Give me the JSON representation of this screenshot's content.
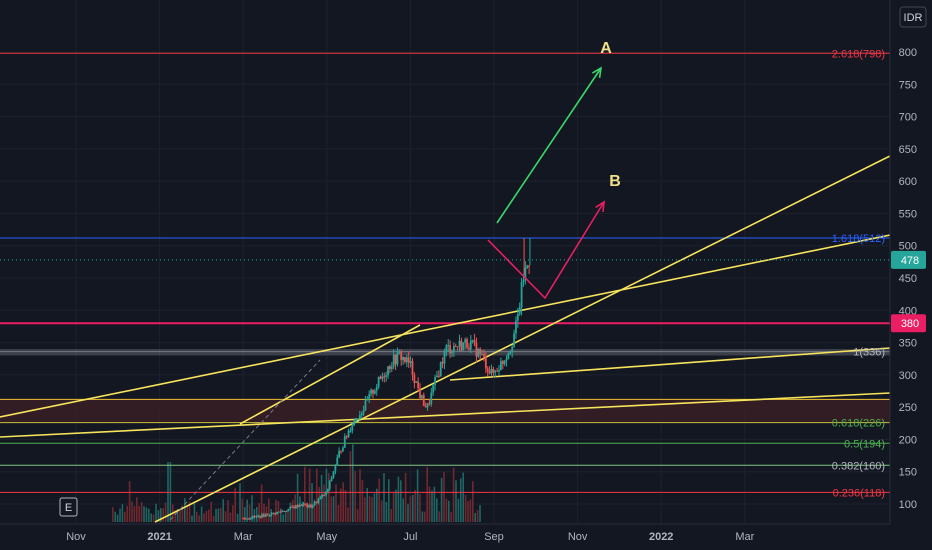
{
  "chart_data": {
    "type": "candlestick",
    "currency": "IDR",
    "y_ticks": [
      100,
      150,
      200,
      250,
      300,
      350,
      400,
      450,
      500,
      550,
      600,
      650,
      700,
      750,
      800
    ],
    "ylim": [
      78,
      858
    ],
    "x_ticks": [
      {
        "label": "Nov",
        "bold": false
      },
      {
        "label": "2021",
        "bold": true
      },
      {
        "label": "Mar",
        "bold": false
      },
      {
        "label": "May",
        "bold": false
      },
      {
        "label": "Jul",
        "bold": false
      },
      {
        "label": "Sep",
        "bold": false
      },
      {
        "label": "Nov",
        "bold": false
      },
      {
        "label": "2022",
        "bold": true
      },
      {
        "label": "Mar",
        "bold": false
      }
    ],
    "candles": {
      "anchors": [
        {
          "m": 4.0,
          "v": 78
        },
        {
          "m": 4.3,
          "v": 80
        },
        {
          "m": 4.7,
          "v": 85
        },
        {
          "m": 5.0,
          "v": 90
        },
        {
          "m": 5.4,
          "v": 100
        },
        {
          "m": 5.6,
          "v": 95
        },
        {
          "m": 6.0,
          "v": 118
        },
        {
          "m": 6.3,
          "v": 180
        },
        {
          "m": 6.6,
          "v": 225
        },
        {
          "m": 6.9,
          "v": 250
        },
        {
          "m": 7.1,
          "v": 275
        },
        {
          "m": 7.35,
          "v": 300
        },
        {
          "m": 7.55,
          "v": 320
        },
        {
          "m": 7.75,
          "v": 330
        },
        {
          "m": 8.0,
          "v": 315
        },
        {
          "m": 8.25,
          "v": 265
        },
        {
          "m": 8.4,
          "v": 248
        },
        {
          "m": 8.6,
          "v": 290
        },
        {
          "m": 8.85,
          "v": 340
        },
        {
          "m": 9.1,
          "v": 345
        },
        {
          "m": 9.4,
          "v": 350
        },
        {
          "m": 9.7,
          "v": 330
        },
        {
          "m": 9.95,
          "v": 300
        },
        {
          "m": 10.2,
          "v": 320
        },
        {
          "m": 10.4,
          "v": 345
        },
        {
          "m": 10.55,
          "v": 380
        },
        {
          "m": 10.7,
          "v": 450
        },
        {
          "m": 10.85,
          "v": 480
        }
      ],
      "last_value": 478
    },
    "fib_levels": [
      {
        "label": "2.618(798)",
        "value": 798,
        "color": "#f23645"
      },
      {
        "label": "1.618(512)",
        "value": 512,
        "color": "#2962ff"
      },
      {
        "label": "1(336)",
        "value": 336,
        "color": "#787b86"
      },
      {
        "label": "0.618(226)",
        "value": 226,
        "color": "#4caf50"
      },
      {
        "label": "0.5(194)",
        "value": 194,
        "color": "#4caf50"
      },
      {
        "label": "0.382(160)",
        "value": 160,
        "color": "#81c784"
      },
      {
        "label": "0.236(118)",
        "value": 118,
        "color": "#f23645"
      }
    ],
    "price_badges": [
      {
        "label": "478",
        "value": 478,
        "color": "#26a69a"
      },
      {
        "label": "380",
        "value": 380,
        "color": "#e91e63"
      }
    ],
    "annotations": [
      {
        "label": "A",
        "color": "#f0e08a"
      },
      {
        "label": "B",
        "color": "#f0e08a"
      }
    ],
    "events_label": "E"
  }
}
